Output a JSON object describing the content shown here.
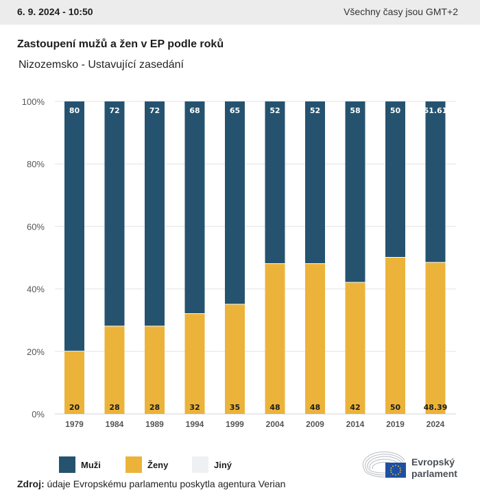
{
  "header": {
    "datetime": "6. 9. 2024 - 10:50",
    "timezone_note": "Všechny časy jsou GMT+2"
  },
  "title": "Zastoupení mužů a žen v EP podle roků",
  "subtitle": "Nizozemsko - Ustavující zasedání",
  "colors": {
    "men": "#25536f",
    "women": "#ecb33a",
    "other": "#eef0f2",
    "grid": "#e2e2e2",
    "axis_text": "#555555"
  },
  "legend": [
    {
      "label": "Muži",
      "key": "men"
    },
    {
      "label": "Ženy",
      "key": "women"
    },
    {
      "label": "Jiný",
      "key": "other"
    }
  ],
  "source": {
    "label": "Zdroj:",
    "text": "údaje Evropskému parlamentu poskytla agentura Verian"
  },
  "logo": {
    "line1": "Evropský",
    "line2": "parlament"
  },
  "chart_data": {
    "type": "bar",
    "stacked": true,
    "percent": true,
    "title": "Zastoupení mužů a žen v EP podle roků",
    "subtitle": "Nizozemsko - Ustavující zasedání",
    "categories": [
      "1979",
      "1984",
      "1989",
      "1994",
      "1999",
      "2004",
      "2009",
      "2014",
      "2019",
      "2024"
    ],
    "series": [
      {
        "name": "Ženy",
        "key": "women",
        "values": [
          20,
          28,
          28,
          32,
          35,
          48,
          48,
          42,
          50,
          48.39
        ],
        "labels": [
          "20",
          "28",
          "28",
          "32",
          "35",
          "48",
          "48",
          "42",
          "50",
          "48.39"
        ]
      },
      {
        "name": "Muži",
        "key": "men",
        "values": [
          80,
          72,
          72,
          68,
          65,
          52,
          52,
          58,
          50,
          51.61
        ],
        "labels": [
          "80",
          "72",
          "72",
          "68",
          "65",
          "52",
          "52",
          "58",
          "50",
          "51.61"
        ]
      },
      {
        "name": "Jiný",
        "key": "other",
        "values": [
          0,
          0,
          0,
          0,
          0,
          0,
          0,
          0,
          0,
          0
        ]
      }
    ],
    "yticks": [
      "0%",
      "20%",
      "40%",
      "60%",
      "80%",
      "100%"
    ],
    "ylim": [
      0,
      100
    ],
    "xlabel": "",
    "ylabel": "",
    "grid": true,
    "legend_position": "bottom-left"
  }
}
